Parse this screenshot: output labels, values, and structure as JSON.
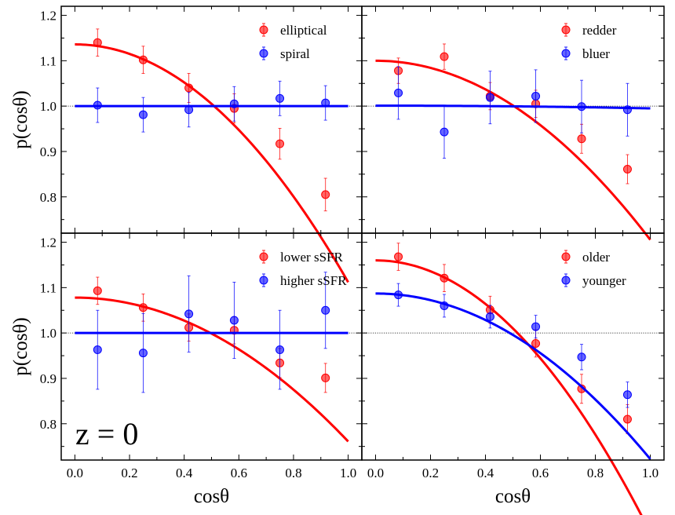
{
  "chart_data": [
    {
      "type": "scatter",
      "panel": "top-left",
      "ylabel": "p(cosθ)",
      "xlabel": "",
      "xlim": [
        -0.05,
        1.05
      ],
      "ylim": [
        0.72,
        1.22
      ],
      "yticks": [
        "0.8",
        "0.9",
        "1.0",
        "1.1",
        "1.2"
      ],
      "xticks": [],
      "legend_position": "top-right",
      "reference_line": 1.0,
      "series": [
        {
          "name": "elliptical",
          "color": "#ff0000",
          "x": [
            0.083,
            0.25,
            0.417,
            0.583,
            0.75,
            0.917
          ],
          "y": [
            1.14,
            1.102,
            1.04,
            0.995,
            0.917,
            0.805
          ],
          "err": [
            0.03,
            0.03,
            0.032,
            0.032,
            0.034,
            0.036
          ],
          "fit": {
            "a": 0.3634,
            "curve_start": 1.136
          }
        },
        {
          "name": "spiral",
          "color": "#0000ff",
          "x": [
            0.083,
            0.25,
            0.417,
            0.583,
            0.75,
            0.917
          ],
          "y": [
            1.002,
            0.981,
            0.992,
            1.005,
            1.017,
            1.007
          ],
          "err": [
            0.038,
            0.038,
            0.038,
            0.038,
            0.038,
            0.038
          ],
          "fit": {
            "a": 0.0,
            "curve_start": 1.0
          }
        }
      ]
    },
    {
      "type": "scatter",
      "panel": "top-right",
      "ylabel": "",
      "xlabel": "",
      "xlim": [
        -0.05,
        1.05
      ],
      "ylim": [
        0.72,
        1.22
      ],
      "yticks": [],
      "xticks": [],
      "legend_position": "top-right",
      "reference_line": 1.0,
      "series": [
        {
          "name": "redder",
          "color": "#ff0000",
          "x": [
            0.083,
            0.25,
            0.417,
            0.583,
            0.75,
            0.917
          ],
          "y": [
            1.078,
            1.109,
            1.022,
            1.005,
            0.928,
            0.861
          ],
          "err": [
            0.028,
            0.028,
            0.03,
            0.03,
            0.032,
            0.032
          ],
          "fit": {
            "a": 0.2716,
            "curve_start": 1.1
          }
        },
        {
          "name": "bluer",
          "color": "#0000ff",
          "x": [
            0.083,
            0.25,
            0.417,
            0.583,
            0.75,
            0.917
          ],
          "y": [
            1.029,
            0.943,
            1.019,
            1.022,
            0.999,
            0.992
          ],
          "err": [
            0.058,
            0.058,
            0.058,
            0.058,
            0.058,
            0.058
          ],
          "fit": {
            "a": 0.004,
            "curve_start": 1.001
          }
        }
      ]
    },
    {
      "type": "scatter",
      "panel": "bottom-left",
      "ylabel": "p(cosθ)",
      "xlabel": "cosθ",
      "xlim": [
        -0.05,
        1.05
      ],
      "ylim": [
        0.72,
        1.22
      ],
      "yticks": [
        "0.8",
        "0.9",
        "1.0",
        "1.1",
        "1.2"
      ],
      "xticks": [
        "0.0",
        "0.2",
        "0.4",
        "0.6",
        "0.8",
        "1.0"
      ],
      "legend_position": "top-right",
      "reference_line": 1.0,
      "annotation": "z = 0",
      "series": [
        {
          "name": "lower sSFR",
          "color": "#ff0000",
          "x": [
            0.083,
            0.25,
            0.417,
            0.583,
            0.75,
            0.917
          ],
          "y": [
            1.093,
            1.056,
            1.012,
            1.006,
            0.934,
            0.901
          ],
          "err": [
            0.03,
            0.03,
            0.03,
            0.03,
            0.032,
            0.032
          ],
          "fit": {
            "a": 0.2174,
            "curve_start": 1.078
          }
        },
        {
          "name": "higher sSFR",
          "color": "#0000ff",
          "x": [
            0.083,
            0.25,
            0.417,
            0.583,
            0.75,
            0.917
          ],
          "y": [
            0.963,
            0.956,
            1.042,
            1.028,
            0.963,
            1.05
          ],
          "err": [
            0.087,
            0.087,
            0.084,
            0.084,
            0.087,
            0.084
          ],
          "fit": {
            "a": 0.0,
            "curve_start": 1.0
          }
        }
      ]
    },
    {
      "type": "scatter",
      "panel": "bottom-right",
      "ylabel": "",
      "xlabel": "cosθ",
      "xlim": [
        -0.05,
        1.05
      ],
      "ylim": [
        0.72,
        1.22
      ],
      "yticks": [],
      "xticks": [
        "0.0",
        "0.2",
        "0.4",
        "0.6",
        "0.8",
        "1.0"
      ],
      "legend_position": "top-right",
      "reference_line": 1.0,
      "series": [
        {
          "name": "older",
          "color": "#ff0000",
          "x": [
            0.083,
            0.25,
            0.417,
            0.583,
            0.75,
            0.917
          ],
          "y": [
            1.168,
            1.121,
            1.051,
            0.977,
            0.877,
            0.81
          ],
          "err": [
            0.03,
            0.03,
            0.03,
            0.03,
            0.032,
            0.032
          ],
          "fit": {
            "a": 0.4166,
            "curve_start": 1.16
          }
        },
        {
          "name": "younger",
          "color": "#0000ff",
          "x": [
            0.083,
            0.25,
            0.417,
            0.583,
            0.75,
            0.917
          ],
          "y": [
            1.084,
            1.06,
            1.036,
            1.014,
            0.947,
            0.864
          ],
          "err": [
            0.025,
            0.025,
            0.025,
            0.025,
            0.028,
            0.028
          ],
          "fit": {
            "a": 0.252,
            "curve_start": 1.087
          }
        }
      ]
    }
  ]
}
